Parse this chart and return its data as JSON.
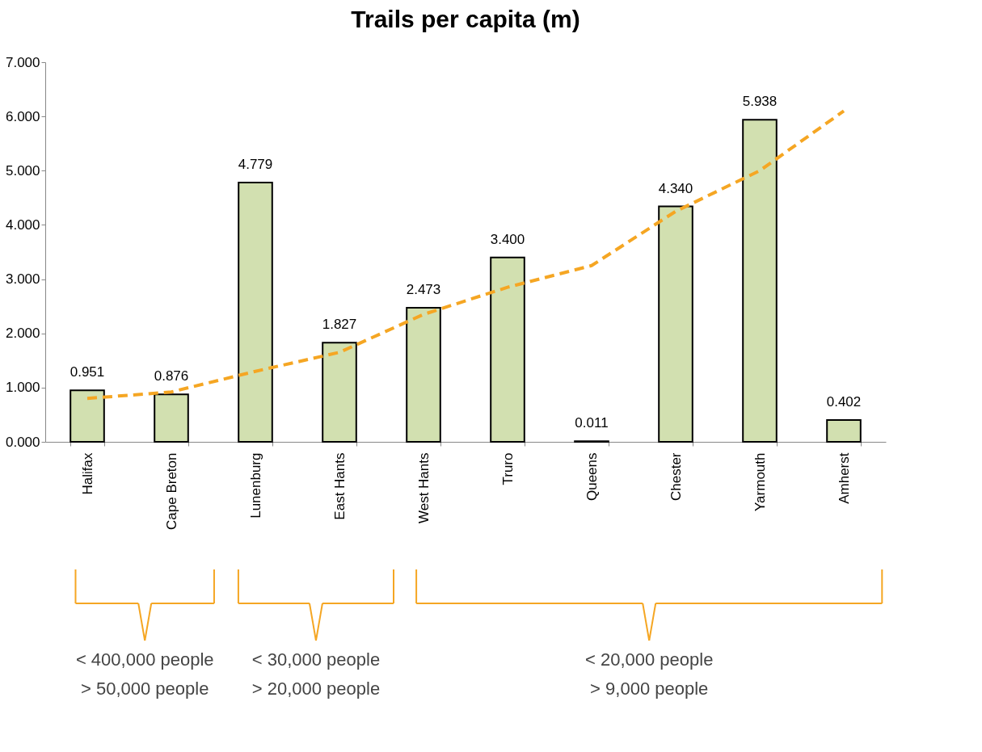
{
  "chart_data": {
    "type": "bar",
    "title": "Trails per capita (m)",
    "categories": [
      "Halifax",
      "Cape Breton",
      "Lunenburg",
      "East Hants",
      "West Hants",
      "Truro",
      "Queens",
      "Chester",
      "Yarmouth",
      "Amherst"
    ],
    "series": [
      {
        "color": "#d2e0b0",
        "values": [
          0.951,
          0.876,
          4.779,
          1.827,
          2.473,
          3.4,
          0.011,
          4.34,
          5.938,
          0.402
        ],
        "value_labels": [
          "0.951",
          "0.876",
          "4.779",
          "1.827",
          "2.473",
          "3.400",
          "0.011",
          "4.340",
          "5.938",
          "0.402"
        ]
      },
      {
        "type": "line",
        "color": "#f5a623",
        "line_style": "dashed",
        "values": [
          0.8,
          0.92,
          1.3,
          1.65,
          2.35,
          2.85,
          3.25,
          4.25,
          5.0,
          6.1
        ]
      }
    ],
    "ylim": [
      0,
      7
    ],
    "yticks": [
      {
        "value": 0,
        "label": "0.000"
      },
      {
        "value": 1,
        "label": "1.000"
      },
      {
        "value": 2,
        "label": "2.000"
      },
      {
        "value": 3,
        "label": "3.000"
      },
      {
        "value": 4,
        "label": "4.000"
      },
      {
        "value": 5,
        "label": "5.000"
      },
      {
        "value": 6,
        "label": "6.000"
      },
      {
        "value": 7,
        "label": "7.000"
      }
    ],
    "grid": false,
    "annotations": [
      "< 400,000 people\n> 50,000 people",
      "< 30,000 people\n> 20,000 people",
      "< 20,000 people\n> 9,000 people"
    ]
  }
}
